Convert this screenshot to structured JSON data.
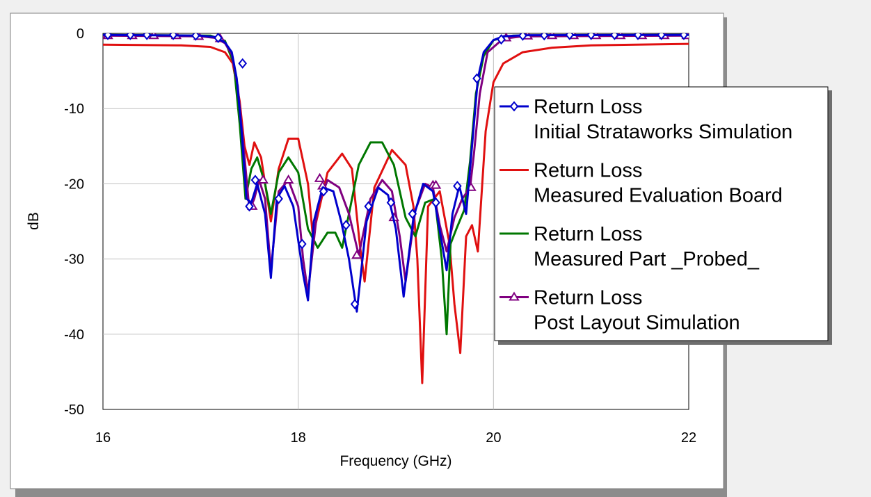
{
  "chart_data": {
    "type": "line",
    "title": "",
    "xlabel": "Frequency (GHz)",
    "ylabel": "dB",
    "xlim": [
      16,
      22
    ],
    "ylim": [
      -50,
      0
    ],
    "xticks": [
      16,
      18,
      20,
      22
    ],
    "yticks": [
      0,
      -10,
      -20,
      -30,
      -40,
      -50
    ],
    "xtick_labels": [
      "16",
      "18",
      "20",
      "22"
    ],
    "ytick_labels": [
      "0",
      "-10",
      "-20",
      "-30",
      "-40",
      "-50"
    ],
    "grid": true,
    "legend_position": "right",
    "series": [
      {
        "line1": "Return Loss",
        "line2": "Initial Strataworks Simulation",
        "color": "#0000cc",
        "marker": "diamond",
        "x": [
          16.0,
          17.0,
          17.15,
          17.25,
          17.32,
          17.37,
          17.42,
          17.47,
          17.52,
          17.58,
          17.66,
          17.72,
          17.78,
          17.86,
          17.95,
          18.05,
          18.1,
          18.16,
          18.25,
          18.36,
          18.44,
          18.52,
          18.6,
          18.7,
          18.82,
          18.92,
          19.0,
          19.08,
          19.18,
          19.28,
          19.38,
          19.46,
          19.52,
          19.58,
          19.65,
          19.72,
          19.78,
          19.84,
          19.9,
          20.0,
          20.1,
          20.3,
          22.0
        ],
        "y": [
          -0.2,
          -0.3,
          -0.5,
          -1.2,
          -2.5,
          -6.0,
          -13.0,
          -22.0,
          -22.5,
          -20.0,
          -24.0,
          -32.5,
          -22.0,
          -20.3,
          -23.0,
          -32.0,
          -35.5,
          -25.0,
          -20.5,
          -21.0,
          -25.0,
          -30.0,
          -37.0,
          -25.0,
          -20.5,
          -21.5,
          -26.0,
          -35.0,
          -24.5,
          -20.0,
          -21.0,
          -27.0,
          -31.5,
          -24.0,
          -20.3,
          -24.0,
          -15.0,
          -6.0,
          -2.5,
          -0.9,
          -0.4,
          -0.25,
          -0.2
        ],
        "marker_x": [
          16.05,
          16.28,
          16.45,
          16.72,
          16.95,
          17.18,
          17.43,
          17.5,
          17.56,
          17.8,
          18.04,
          18.26,
          18.49,
          18.58,
          18.72,
          18.95,
          19.17,
          19.41,
          19.63,
          19.83,
          20.08,
          20.3,
          20.52,
          20.78,
          21.0,
          21.24,
          21.48,
          21.72,
          21.95
        ],
        "marker_y": [
          -0.2,
          -0.2,
          -0.2,
          -0.2,
          -0.3,
          -0.6,
          -4.0,
          -23.0,
          -19.5,
          -22.0,
          -28.0,
          -21.0,
          -25.5,
          -36.0,
          -23.0,
          -22.5,
          -24.0,
          -22.5,
          -20.3,
          -6.0,
          -0.8,
          -0.3,
          -0.25,
          -0.2,
          -0.2,
          -0.2,
          -0.2,
          -0.2,
          -0.2
        ]
      },
      {
        "line1": "Return Loss",
        "line2": "Measured Evaluation Board",
        "color": "#e01010",
        "marker": "none",
        "x": [
          16.0,
          16.8,
          17.1,
          17.25,
          17.33,
          17.4,
          17.45,
          17.5,
          17.55,
          17.62,
          17.72,
          17.8,
          17.9,
          18.0,
          18.1,
          18.15,
          18.3,
          18.45,
          18.55,
          18.63,
          18.68,
          18.78,
          18.96,
          19.1,
          19.18,
          19.22,
          19.27,
          19.33,
          19.45,
          19.55,
          19.6,
          19.66,
          19.72,
          19.78,
          19.84,
          19.92,
          20.0,
          20.1,
          20.3,
          20.6,
          21.0,
          22.0
        ],
        "y": [
          -1.5,
          -1.6,
          -1.8,
          -2.5,
          -4.0,
          -9.0,
          -15.0,
          -17.5,
          -14.5,
          -16.5,
          -25.0,
          -18.0,
          -14.0,
          -14.0,
          -20.0,
          -27.0,
          -18.5,
          -16.0,
          -18.0,
          -28.0,
          -33.0,
          -20.5,
          -15.5,
          -17.5,
          -23.0,
          -30.0,
          -46.5,
          -23.0,
          -21.0,
          -28.0,
          -36.0,
          -42.5,
          -27.0,
          -25.5,
          -29.0,
          -13.0,
          -6.5,
          -4.0,
          -2.5,
          -1.9,
          -1.6,
          -1.4
        ]
      },
      {
        "line1": "Return Loss",
        "line2": "Measured Part _Probed_",
        "color": "#007700",
        "marker": "none",
        "x": [
          16.0,
          17.1,
          17.25,
          17.34,
          17.4,
          17.46,
          17.52,
          17.58,
          17.66,
          17.72,
          17.8,
          17.9,
          18.0,
          18.1,
          18.2,
          18.3,
          18.38,
          18.45,
          18.52,
          18.62,
          18.74,
          18.86,
          18.98,
          19.1,
          19.2,
          19.3,
          19.4,
          19.47,
          19.52,
          19.56,
          19.62,
          19.7,
          19.76,
          19.82,
          19.9,
          20.0,
          20.2,
          22.0
        ],
        "y": [
          -0.2,
          -0.3,
          -1.0,
          -4.0,
          -12.0,
          -22.0,
          -18.0,
          -16.5,
          -20.0,
          -24.0,
          -18.5,
          -16.5,
          -18.5,
          -26.0,
          -28.5,
          -26.5,
          -26.5,
          -28.5,
          -24.0,
          -17.5,
          -14.5,
          -14.5,
          -17.5,
          -24.5,
          -27.0,
          -22.5,
          -22.0,
          -30.0,
          -40.0,
          -28.0,
          -26.0,
          -23.5,
          -17.0,
          -8.0,
          -3.0,
          -0.9,
          -0.3,
          -0.2
        ]
      },
      {
        "line1": "Return Loss",
        "line2": "Post Layout Simulation",
        "color": "#800080",
        "marker": "triangle",
        "x": [
          16.0,
          17.0,
          17.15,
          17.25,
          17.32,
          17.38,
          17.44,
          17.5,
          17.55,
          17.6,
          17.66,
          17.72,
          17.8,
          17.9,
          18.0,
          18.05,
          18.1,
          18.2,
          18.3,
          18.42,
          18.52,
          18.62,
          18.74,
          18.86,
          18.96,
          19.04,
          19.1,
          19.2,
          19.3,
          19.38,
          19.45,
          19.52,
          19.6,
          19.68,
          19.76,
          19.8,
          19.86,
          19.94,
          20.1,
          20.3,
          22.0
        ],
        "y": [
          -0.3,
          -0.4,
          -0.6,
          -1.3,
          -2.8,
          -7.0,
          -15.0,
          -23.5,
          -22.0,
          -19.5,
          -22.0,
          -31.5,
          -21.0,
          -19.5,
          -23.0,
          -30.0,
          -34.5,
          -23.0,
          -19.5,
          -20.5,
          -24.0,
          -29.5,
          -22.0,
          -19.5,
          -21.0,
          -27.0,
          -33.0,
          -23.5,
          -20.0,
          -20.5,
          -25.5,
          -29.0,
          -24.5,
          -22.0,
          -20.5,
          -16.0,
          -8.0,
          -2.5,
          -0.7,
          -0.4,
          -0.3
        ],
        "marker_x": [
          16.05,
          16.3,
          16.52,
          16.75,
          16.98,
          17.2,
          17.53,
          17.64,
          17.9,
          18.22,
          18.25,
          18.6,
          18.98,
          19.38,
          19.41,
          19.77,
          20.13,
          20.35,
          20.6,
          20.82,
          21.05,
          21.3,
          21.52,
          21.75,
          21.98
        ],
        "marker_y": [
          -0.3,
          -0.3,
          -0.3,
          -0.3,
          -0.4,
          -0.7,
          -23.0,
          -19.5,
          -19.5,
          -19.3,
          -20.3,
          -29.5,
          -24.5,
          -20.2,
          -20.2,
          -20.5,
          -0.6,
          -0.35,
          -0.3,
          -0.3,
          -0.3,
          -0.3,
          -0.3,
          -0.3,
          -0.3
        ]
      }
    ]
  }
}
